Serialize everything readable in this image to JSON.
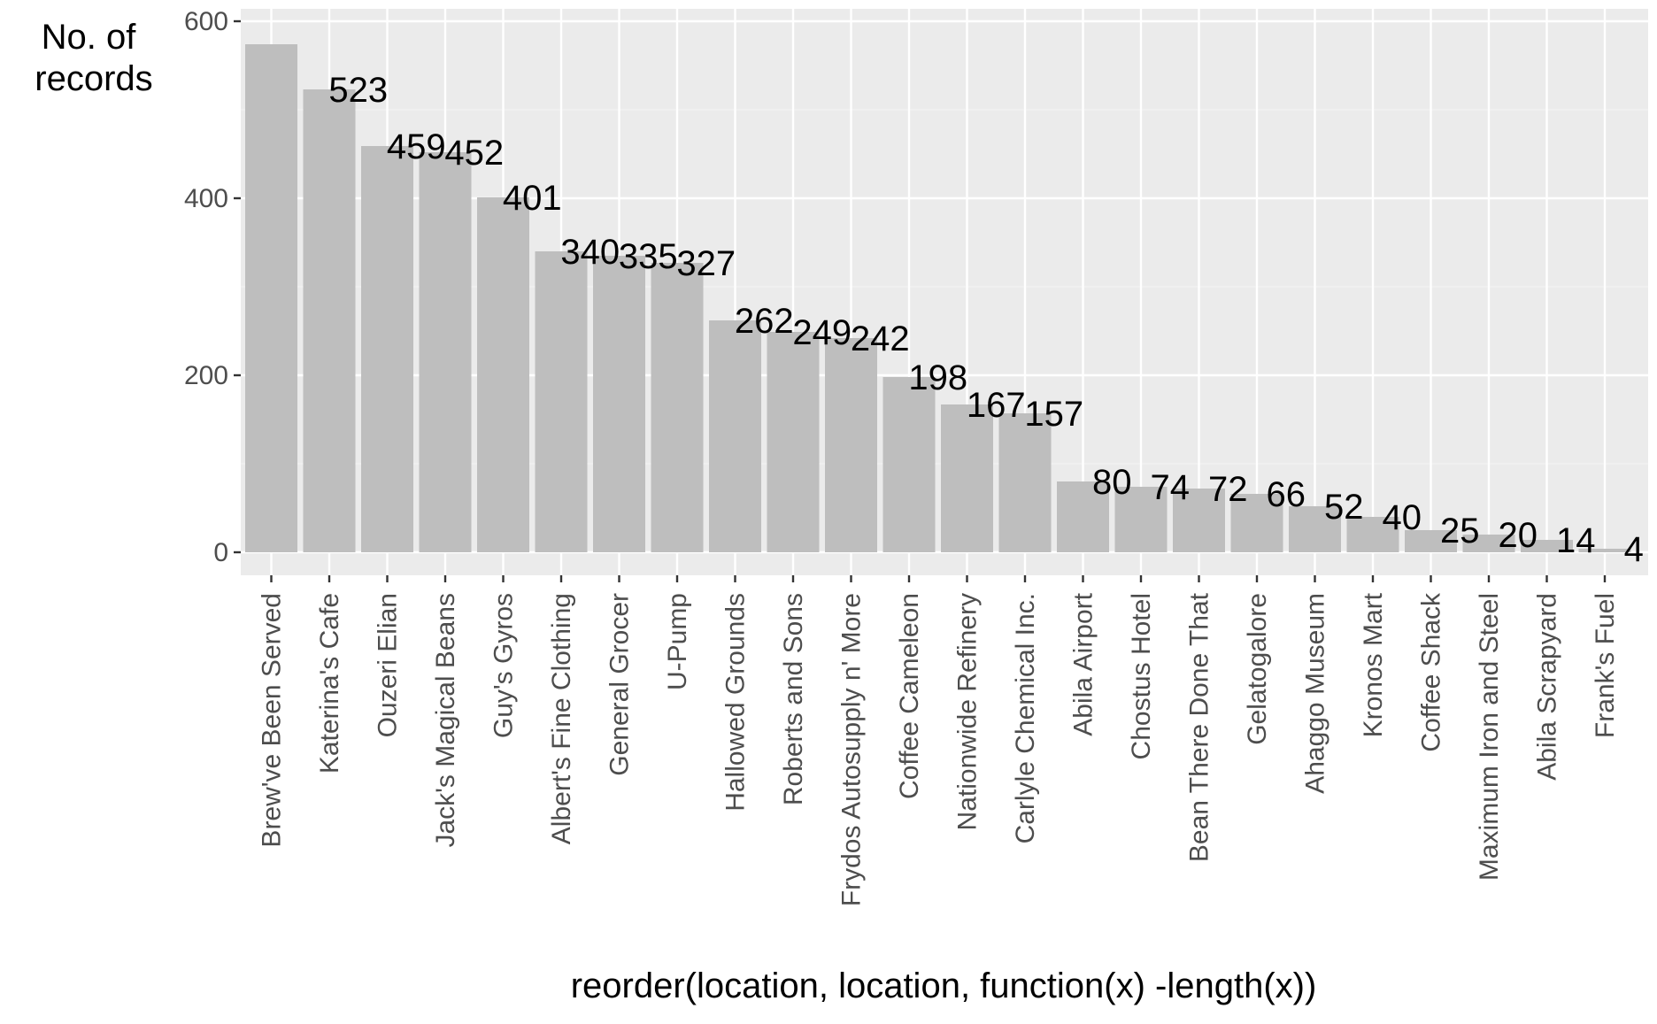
{
  "chart_data": {
    "type": "bar",
    "title": "",
    "xlabel": "reorder(location, location, function(x) -length(x))",
    "ylabel_lines": [
      "No. of",
      "records"
    ],
    "ylim": [
      0,
      600
    ],
    "yticks": [
      0,
      200,
      400,
      600
    ],
    "grid": true,
    "categories": [
      "Brew've Been Served",
      "Katerina's Cafe",
      "Ouzeri Elian",
      "Jack's Magical Beans",
      "Guy's Gyros",
      "Albert's Fine Clothing",
      "General Grocer",
      "U-Pump",
      "Hallowed Grounds",
      "Roberts and Sons",
      "Frydos Autosupply n' More",
      "Coffee Cameleon",
      "Nationwide Refinery",
      "Carlyle Chemical Inc.",
      "Abila Airport",
      "Chostus Hotel",
      "Bean There Done That",
      "Gelatogalore",
      "Ahaggo Museum",
      "Kronos Mart",
      "Coffee Shack",
      "Maximum Iron and Steel",
      "Abila Scrapyard",
      "Frank's Fuel"
    ],
    "values": [
      574,
      523,
      459,
      452,
      401,
      340,
      335,
      327,
      262,
      249,
      242,
      198,
      167,
      157,
      80,
      74,
      72,
      66,
      52,
      40,
      25,
      20,
      14,
      4
    ],
    "data_labels": [
      "",
      "523",
      "459",
      "452",
      "401",
      "340",
      "335",
      "327",
      "262",
      "249",
      "242",
      "198",
      "167",
      "157",
      "80",
      "74",
      "72",
      "66",
      "52",
      "40",
      "25",
      "20",
      "14",
      "4"
    ],
    "colors": {
      "panel": "#ebebeb",
      "grid_major": "#ffffff",
      "grid_minor": "#f2f2f2",
      "bar": "#bebebe",
      "tick": "#333333",
      "tick_label": "#4d4d4d",
      "text": "#000000"
    }
  }
}
